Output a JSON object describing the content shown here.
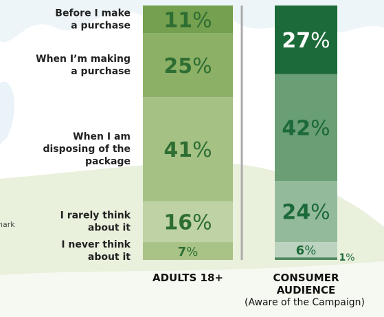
{
  "chart_data": {
    "type": "bar",
    "stacked": true,
    "categories": [
      "Before I make\na purchase",
      "When I’m making\na purchase",
      "When I am\ndisposing of the\npackage",
      "I rarely think\nabout it",
      "I never think\nabout it"
    ],
    "ylim": [
      0,
      100
    ],
    "series": [
      {
        "name": "ADULTS 18+",
        "values": [
          11,
          25,
          41,
          16,
          7
        ],
        "value_labels": [
          "11%",
          "25%",
          "41%",
          "16%",
          "7%"
        ],
        "colors": [
          "#74a04f",
          "#8cb066",
          "#a5c184",
          "#bfd2a6",
          "#a9c387"
        ]
      },
      {
        "name": "CONSUMER\nAUDIENCE",
        "note": "(Aware of the Campaign)",
        "values": [
          27,
          42,
          24,
          6,
          1
        ],
        "value_labels": [
          "27%",
          "42%",
          "24%",
          "6%",
          "1%"
        ],
        "colors": [
          "#1c6a39",
          "#6a9e74",
          "#94ba9c",
          "#bcd3c0",
          "#4f8a5e"
        ]
      }
    ],
    "annotation": "nark"
  }
}
